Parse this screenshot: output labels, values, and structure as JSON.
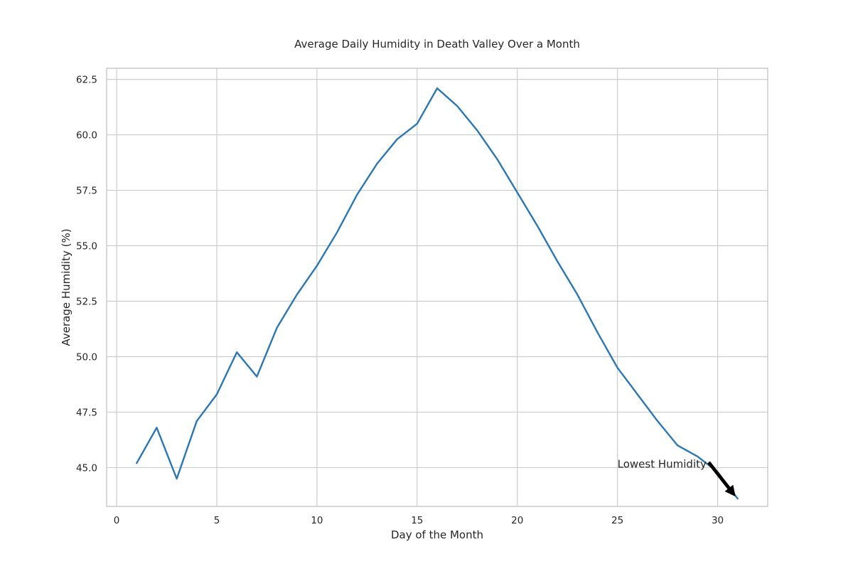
{
  "chart_data": {
    "type": "line",
    "title": "Average Daily Humidity in Death Valley Over a Month",
    "xlabel": "Day of the Month",
    "ylabel": "Average Humidity (%)",
    "xlim": [
      -0.5,
      32.5
    ],
    "ylim": [
      43.25,
      63.0
    ],
    "xticks": [
      0,
      5,
      10,
      15,
      20,
      25,
      30
    ],
    "yticks": [
      45.0,
      47.5,
      50.0,
      52.5,
      55.0,
      57.5,
      60.0,
      62.5
    ],
    "grid": true,
    "series": [
      {
        "color": "#2a77b4",
        "x": [
          1,
          2,
          3,
          4,
          5,
          6,
          7,
          8,
          9,
          10,
          11,
          12,
          13,
          14,
          15,
          16,
          17,
          18,
          19,
          20,
          21,
          22,
          23,
          24,
          25,
          26,
          27,
          28,
          29,
          30,
          31
        ],
        "y": [
          45.2,
          46.8,
          44.5,
          47.1,
          48.3,
          50.2,
          49.1,
          51.3,
          52.8,
          54.1,
          55.6,
          57.3,
          58.7,
          59.8,
          60.5,
          62.1,
          61.3,
          60.2,
          58.9,
          57.4,
          55.9,
          54.3,
          52.8,
          51.1,
          49.5,
          48.3,
          47.1,
          46.0,
          45.5,
          44.8,
          43.6
        ]
      }
    ],
    "annotation": {
      "text": "Lowest Humidity",
      "text_x": 25,
      "text_y": 45.0,
      "arrow_x": 31,
      "arrow_y": 43.6
    }
  }
}
